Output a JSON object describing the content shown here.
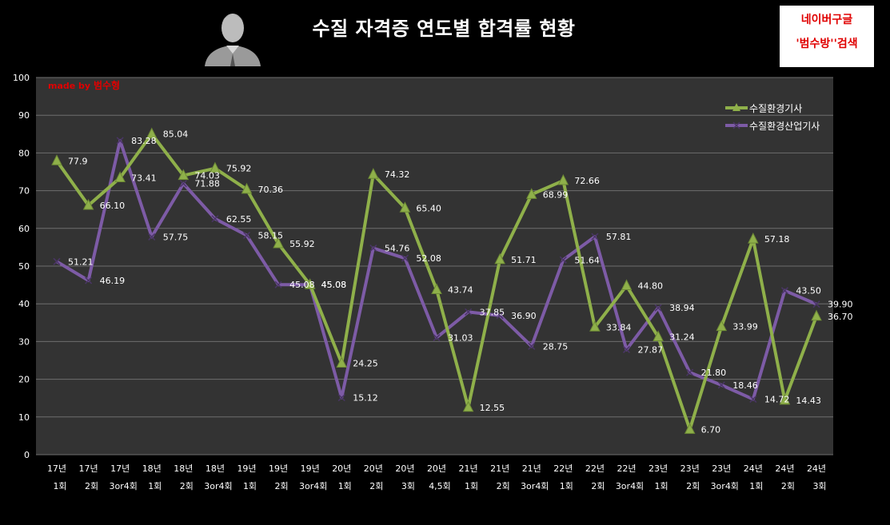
{
  "header": {
    "title": "수질 자격증 연도별 합격률 현황",
    "note_line1": "네이버구글",
    "note_line2": "'범수방''검색",
    "made_by_prefix": "made by ",
    "made_by_name": "범수형"
  },
  "avatar_icon": "person-silhouette-icon",
  "colors": {
    "background": "#000000",
    "plot_area": "#333333",
    "grid": "#6e6e6e",
    "series1": "#8FB04A",
    "series2": "#7D5BA6",
    "note_text": "#e00000"
  },
  "chart_data": {
    "type": "line",
    "title": "수질 자격증 연도별 합격률 현황",
    "ylim": [
      0,
      100
    ],
    "yticks": [
      0,
      10,
      20,
      30,
      40,
      50,
      60,
      70,
      80,
      90,
      100
    ],
    "grid": true,
    "legend_position": "top-right",
    "categories": [
      [
        "17년",
        "1회"
      ],
      [
        "17년",
        "2회"
      ],
      [
        "17년",
        "3or4회"
      ],
      [
        "18년",
        "1회"
      ],
      [
        "18년",
        "2회"
      ],
      [
        "18년",
        "3or4회"
      ],
      [
        "19년",
        "1회"
      ],
      [
        "19년",
        "2회"
      ],
      [
        "19년",
        "3or4회"
      ],
      [
        "20년",
        "1회"
      ],
      [
        "20년",
        "2회"
      ],
      [
        "20년",
        "3회"
      ],
      [
        "20년",
        "4,5회"
      ],
      [
        "21년",
        "1회"
      ],
      [
        "21년",
        "2회"
      ],
      [
        "21년",
        "3or4회"
      ],
      [
        "22년",
        "1회"
      ],
      [
        "22년",
        "2회"
      ],
      [
        "22년",
        "3or4회"
      ],
      [
        "23년",
        "1회"
      ],
      [
        "23년",
        "2회"
      ],
      [
        "23년",
        "3or4회"
      ],
      [
        "24년",
        "1회"
      ],
      [
        "24년",
        "2회"
      ],
      [
        "24년",
        "3회"
      ]
    ],
    "series": [
      {
        "name": "수질환경기사",
        "values": [
          77.9,
          66.1,
          73.41,
          85.04,
          74.03,
          75.92,
          70.36,
          55.92,
          45.08,
          24.25,
          74.32,
          65.4,
          43.74,
          12.55,
          51.71,
          68.99,
          72.66,
          33.84,
          44.8,
          31.24,
          6.7,
          33.99,
          57.18,
          14.43,
          36.7
        ],
        "labels": [
          "77.9",
          "66.10",
          "73.41",
          "85.04",
          "74.03",
          "75.92",
          "70.36",
          "55.92",
          "45.08",
          "24.25",
          "74.32",
          "65.40",
          "43.74",
          "12.55",
          "51.71",
          "68.99",
          "72.66",
          "33.84",
          "44.80",
          "31.24",
          "6.70",
          "33.99",
          "57.18",
          "14.43",
          "36.70"
        ]
      },
      {
        "name": "수질환경산업기사",
        "values": [
          51.21,
          46.19,
          83.28,
          57.75,
          71.88,
          62.55,
          58.15,
          45.08,
          45.08,
          15.12,
          54.76,
          52.08,
          31.03,
          37.85,
          36.9,
          28.75,
          51.64,
          57.81,
          27.87,
          38.94,
          21.8,
          18.46,
          14.72,
          43.5,
          39.9
        ],
        "labels": [
          "51.21",
          "46.19",
          "83.28",
          "57.75",
          "71.88",
          "62.55",
          "58.15",
          "45.08",
          "45.08",
          "15.12",
          "54.76",
          "52.08",
          "31.03",
          "37.85",
          "36.90",
          "28.75",
          "51.64",
          "57.81",
          "27.87",
          "38.94",
          "21.80",
          "18.46",
          "14.72",
          "43.50",
          "39.90"
        ]
      }
    ]
  }
}
